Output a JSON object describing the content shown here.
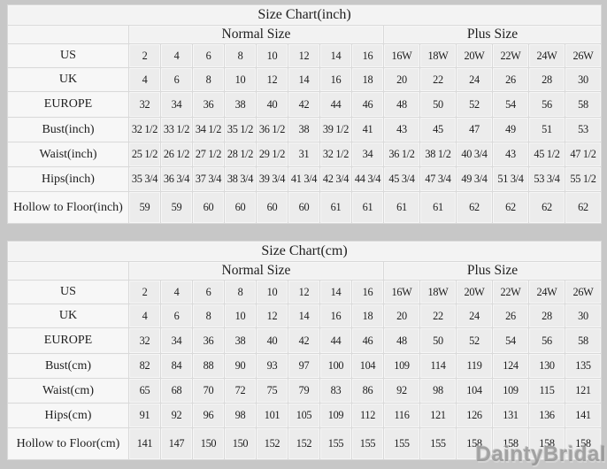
{
  "page": {
    "background": "#c7c7c7",
    "watermark": "DaintyBridal",
    "colors": {
      "cell_bg": "#ececec",
      "label_bg": "#f7f7f7",
      "border": "#d9d9d9",
      "text": "#1e1e1e"
    }
  },
  "chart_data": [
    {
      "type": "table",
      "title": "Size Chart(inch)",
      "group_headers": {
        "normal": "Normal Size",
        "plus": "Plus Size"
      },
      "rows": [
        {
          "label": "US",
          "normal": [
            "2",
            "4",
            "6",
            "8",
            "10",
            "12",
            "14",
            "16"
          ],
          "plus": [
            "16W",
            "18W",
            "20W",
            "22W",
            "24W",
            "26W"
          ]
        },
        {
          "label": "UK",
          "normal": [
            "4",
            "6",
            "8",
            "10",
            "12",
            "14",
            "16",
            "18"
          ],
          "plus": [
            "20",
            "22",
            "24",
            "26",
            "28",
            "30"
          ]
        },
        {
          "label": "EUROPE",
          "normal": [
            "32",
            "34",
            "36",
            "38",
            "40",
            "42",
            "44",
            "46"
          ],
          "plus": [
            "48",
            "50",
            "52",
            "54",
            "56",
            "58"
          ]
        },
        {
          "label": "Bust(inch)",
          "normal": [
            "32 1/2",
            "33 1/2",
            "34 1/2",
            "35 1/2",
            "36 1/2",
            "38",
            "39 1/2",
            "41"
          ],
          "plus": [
            "43",
            "45",
            "47",
            "49",
            "51",
            "53"
          ]
        },
        {
          "label": "Waist(inch)",
          "normal": [
            "25 1/2",
            "26 1/2",
            "27 1/2",
            "28 1/2",
            "29 1/2",
            "31",
            "32 1/2",
            "34"
          ],
          "plus": [
            "36 1/2",
            "38 1/2",
            "40 3/4",
            "43",
            "45 1/2",
            "47 1/2"
          ]
        },
        {
          "label": "Hips(inch)",
          "normal": [
            "35 3/4",
            "36 3/4",
            "37 3/4",
            "38 3/4",
            "39 3/4",
            "41 3/4",
            "42 3/4",
            "44 3/4"
          ],
          "plus": [
            "45 3/4",
            "47 3/4",
            "49 3/4",
            "51 3/4",
            "53 3/4",
            "55 1/2"
          ]
        },
        {
          "label": "Hollow to Floor(inch)",
          "normal": [
            "59",
            "59",
            "60",
            "60",
            "60",
            "60",
            "61",
            "61"
          ],
          "plus": [
            "61",
            "61",
            "62",
            "62",
            "62",
            "62"
          ]
        }
      ]
    },
    {
      "type": "table",
      "title": "Size Chart(cm)",
      "group_headers": {
        "normal": "Normal Size",
        "plus": "Plus Size"
      },
      "rows": [
        {
          "label": "US",
          "normal": [
            "2",
            "4",
            "6",
            "8",
            "10",
            "12",
            "14",
            "16"
          ],
          "plus": [
            "16W",
            "18W",
            "20W",
            "22W",
            "24W",
            "26W"
          ]
        },
        {
          "label": "UK",
          "normal": [
            "4",
            "6",
            "8",
            "10",
            "12",
            "14",
            "16",
            "18"
          ],
          "plus": [
            "20",
            "22",
            "24",
            "26",
            "28",
            "30"
          ]
        },
        {
          "label": "EUROPE",
          "normal": [
            "32",
            "34",
            "36",
            "38",
            "40",
            "42",
            "44",
            "46"
          ],
          "plus": [
            "48",
            "50",
            "52",
            "54",
            "56",
            "58"
          ]
        },
        {
          "label": "Bust(cm)",
          "normal": [
            "82",
            "84",
            "88",
            "90",
            "93",
            "97",
            "100",
            "104"
          ],
          "plus": [
            "109",
            "114",
            "119",
            "124",
            "130",
            "135"
          ]
        },
        {
          "label": "Waist(cm)",
          "normal": [
            "65",
            "68",
            "70",
            "72",
            "75",
            "79",
            "83",
            "86"
          ],
          "plus": [
            "92",
            "98",
            "104",
            "109",
            "115",
            "121"
          ]
        },
        {
          "label": "Hips(cm)",
          "normal": [
            "91",
            "92",
            "96",
            "98",
            "101",
            "105",
            "109",
            "112"
          ],
          "plus": [
            "116",
            "121",
            "126",
            "131",
            "136",
            "141"
          ]
        },
        {
          "label": "Hollow to Floor(cm)",
          "normal": [
            "141",
            "147",
            "150",
            "150",
            "152",
            "152",
            "155",
            "155"
          ],
          "plus": [
            "155",
            "155",
            "158",
            "158",
            "158",
            "158"
          ]
        }
      ]
    }
  ]
}
